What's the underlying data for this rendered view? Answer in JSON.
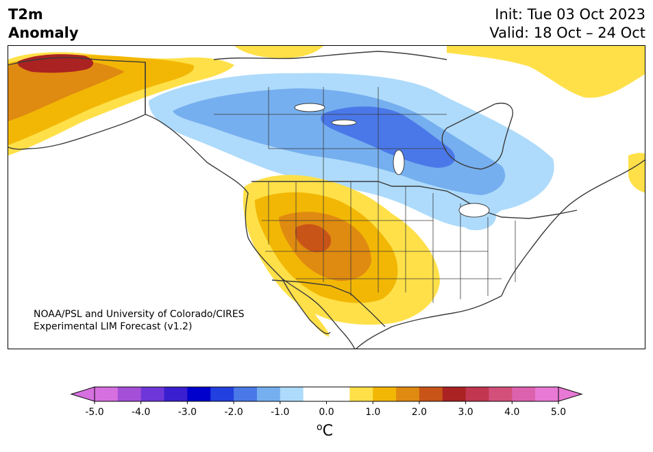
{
  "title": {
    "line1": "T2m",
    "line2": "Anomaly"
  },
  "run": {
    "init": "Init: Tue 03 Oct 2023",
    "valid": "Valid: 18 Oct – 24 Oct"
  },
  "credit": {
    "line1": "NOAA/PSL and University of Colorado/CIRES",
    "line2": "Experimental LIM Forecast (v1.2)"
  },
  "colorbar": {
    "ticks": [
      "-5.0",
      "-4.0",
      "-3.0",
      "-2.0",
      "-1.0",
      "0.0",
      "1.0",
      "2.0",
      "3.0",
      "4.0",
      "5.0"
    ],
    "unit_sup": "o",
    "unit": "C",
    "colors": [
      "#d670e0",
      "#a44fd8",
      "#6e36d8",
      "#3a1fd0",
      "#0000cc",
      "#2240e0",
      "#4a78e8",
      "#76afef",
      "#aedbfb",
      "#ffffff",
      "#ffffff",
      "#ffe048",
      "#f2b705",
      "#df8a10",
      "#c95417",
      "#aa2222",
      "#c23650",
      "#d2507a",
      "#dd62ae",
      "#e879d4"
    ],
    "ext_low": "#d670e0",
    "ext_high": "#e879d4"
  },
  "anomaly_colors": {
    "cold_1": "#aedbfb",
    "cold_2": "#76afef",
    "cold_3": "#4a78e8",
    "warm_1": "#ffe048",
    "warm_2": "#f2b705",
    "warm_3": "#df8a10",
    "warm_4": "#c95417",
    "warm_5": "#aa2222"
  }
}
